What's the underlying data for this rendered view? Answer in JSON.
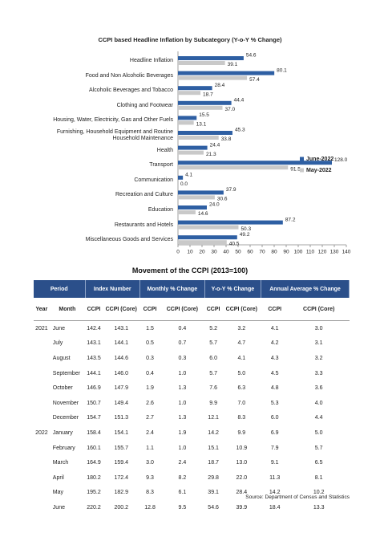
{
  "chart_data": {
    "type": "bar",
    "orientation": "horizontal",
    "title": "CCPI based Headline Inflation by Subcategory (Y-o-Y % Change)",
    "categories": [
      "Headline Inflation",
      "Food and Non Alcoholic Beverages",
      "Alcoholic Beverages and Tobacco",
      "Clothing and Footwear",
      "Housing, Water, Electricity, Gas and Other Fuels",
      "Furnishing, Household Equipment and Routine\nHousehold Maintenance",
      "Health",
      "Transport",
      "Communication",
      "Recreation and Culture",
      "Education",
      "Restaurants and Hotels",
      "Miscellaneous Goods and Services"
    ],
    "series": [
      {
        "name": "June-2022",
        "color": "#2e5fa3",
        "values": [
          54.6,
          80.1,
          28.4,
          44.4,
          15.5,
          45.3,
          24.4,
          128,
          4.1,
          37.9,
          24,
          87.2,
          49.2
        ],
        "value_labels": [
          "54.6",
          "80.1",
          "28.4",
          "44.4",
          "15.5",
          "45.3",
          "24.4",
          "128.0",
          "4.1",
          "37.9",
          "24.0",
          "87.2",
          "49.2"
        ]
      },
      {
        "name": "May-2022",
        "color": "#c9c9c9",
        "values": [
          39.1,
          57.4,
          18.7,
          37,
          13.1,
          33.8,
          21.3,
          91.5,
          0,
          30.6,
          14.6,
          50.3,
          40.5
        ],
        "value_labels": [
          "39.1",
          "57.4",
          "18.7",
          "37.0",
          "13.1",
          "33.8",
          "21.3",
          "91.5",
          "0.0",
          "30.6",
          "14.6",
          "50.3",
          "40.5"
        ]
      }
    ],
    "xlim": [
      0,
      140
    ],
    "xticks": [
      0,
      10,
      20,
      30,
      40,
      50,
      60,
      70,
      80,
      90,
      100,
      110,
      120,
      130,
      140
    ],
    "legend": "right"
  },
  "table": {
    "title": "Movement of the CCPI (2013=100)",
    "group_headers": [
      "Period",
      "Index Number",
      "Monthly % Change",
      "Y-o-Y % Change",
      "Annual Average % Change"
    ],
    "sub_headers": [
      "Year",
      "Month",
      "CCPI",
      "CCPI (Core)",
      "CCPI",
      "CCPI (Core)",
      "CCPI",
      "CCPI (Core)",
      "CCPI",
      "CCPI (Core)"
    ],
    "rows": [
      {
        "year": "2021",
        "month": "June",
        "cells": [
          "142.4",
          "143.1",
          "1.5",
          "0.4",
          "5.2",
          "3.2",
          "4.1",
          "3.0"
        ]
      },
      {
        "month": "July",
        "cells": [
          "143.1",
          "144.1",
          "0.5",
          "0.7",
          "5.7",
          "4.7",
          "4.2",
          "3.1"
        ]
      },
      {
        "month": "August",
        "cells": [
          "143.5",
          "144.6",
          "0.3",
          "0.3",
          "6.0",
          "4.1",
          "4.3",
          "3.2"
        ]
      },
      {
        "month": "September",
        "cells": [
          "144.1",
          "146.0",
          "0.4",
          "1.0",
          "5.7",
          "5.0",
          "4.5",
          "3.3"
        ]
      },
      {
        "month": "October",
        "cells": [
          "146.9",
          "147.9",
          "1.9",
          "1.3",
          "7.6",
          "6.3",
          "4.8",
          "3.6"
        ]
      },
      {
        "month": "November",
        "cells": [
          "150.7",
          "149.4",
          "2.6",
          "1.0",
          "9.9",
          "7.0",
          "5.3",
          "4.0"
        ]
      },
      {
        "month": "December",
        "cells": [
          "154.7",
          "151.3",
          "2.7",
          "1.3",
          "12.1",
          "8.3",
          "6.0",
          "4.4"
        ]
      },
      {
        "year": "2022",
        "month": "January",
        "cells": [
          "158.4",
          "154.1",
          "2.4",
          "1.9",
          "14.2",
          "9.9",
          "6.9",
          "5.0"
        ]
      },
      {
        "month": "February",
        "cells": [
          "160.1",
          "155.7",
          "1.1",
          "1.0",
          "15.1",
          "10.9",
          "7.9",
          "5.7"
        ]
      },
      {
        "month": "March",
        "cells": [
          "164.9",
          "159.4",
          "3.0",
          "2.4",
          "18.7",
          "13.0",
          "9.1",
          "6.5"
        ]
      },
      {
        "month": "April",
        "cells": [
          "180.2",
          "172.4",
          "9.3",
          "8.2",
          "29.8",
          "22.0",
          "11.3",
          "8.1"
        ]
      },
      {
        "month": "May",
        "cells": [
          "195.2",
          "182.9",
          "8.3",
          "6.1",
          "39.1",
          "28.4",
          "14.2",
          "10.2"
        ]
      },
      {
        "month": "June",
        "cells": [
          "220.2",
          "200.2",
          "12.8",
          "9.5",
          "54.6",
          "39.9",
          "18.4",
          "13.3"
        ]
      }
    ],
    "source": "Source: Department of Census and Statistics"
  }
}
